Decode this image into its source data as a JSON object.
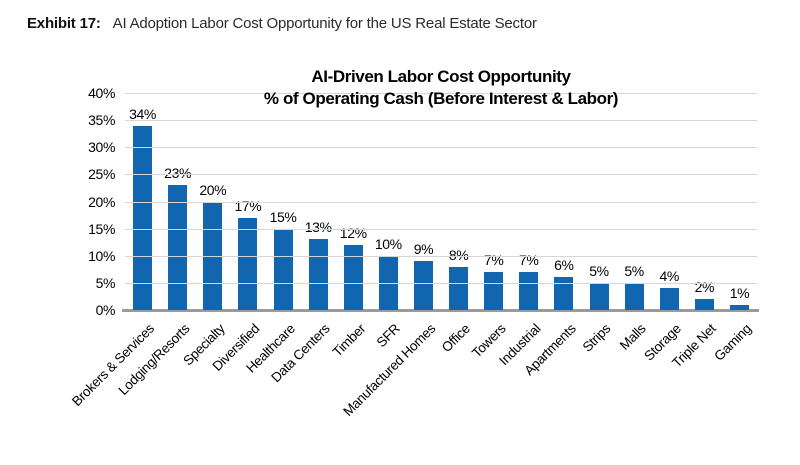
{
  "header": {
    "exhibit_label": "Exhibit 17:",
    "title": "AI Adoption Labor Cost Opportunity for the US Real Estate Sector"
  },
  "chart_data": {
    "type": "bar",
    "title_line1": "AI-Driven Labor Cost Opportunity",
    "title_line2": "% of Operating Cash (Before Interest & Labor)",
    "categories": [
      "Brokers & Services",
      "Lodging/Resorts",
      "Specialty",
      "Diversified",
      "Healthcare",
      "Data Centers",
      "Timber",
      "SFR",
      "Manufactured Homes",
      "Office",
      "Towers",
      "Industrial",
      "Apartments",
      "Strips",
      "Malls",
      "Storage",
      "Triple Net",
      "Gaming"
    ],
    "values": [
      34,
      23,
      20,
      17,
      15,
      13,
      12,
      10,
      9,
      8,
      7,
      7,
      6,
      5,
      5,
      4,
      2,
      1
    ],
    "data_labels": [
      "34%",
      "23%",
      "20%",
      "17%",
      "15%",
      "13%",
      "12%",
      "10%",
      "9%",
      "8%",
      "7%",
      "7%",
      "6%",
      "5%",
      "5%",
      "4%",
      "2%",
      "1%"
    ],
    "y_tick_labels": [
      "40%",
      "35%",
      "30%",
      "25%",
      "20%",
      "15%",
      "10%",
      "5%",
      "0%"
    ],
    "ylim": [
      0,
      40
    ],
    "y_tick_step": 5,
    "xlabel": "",
    "ylabel": "",
    "grid": "horizontal",
    "legend": "none",
    "bar_color": "#1266B0",
    "gridline_color": "#d6d6d6",
    "baseline_color": "#9b9b9b",
    "label_rotation_deg": -45
  }
}
